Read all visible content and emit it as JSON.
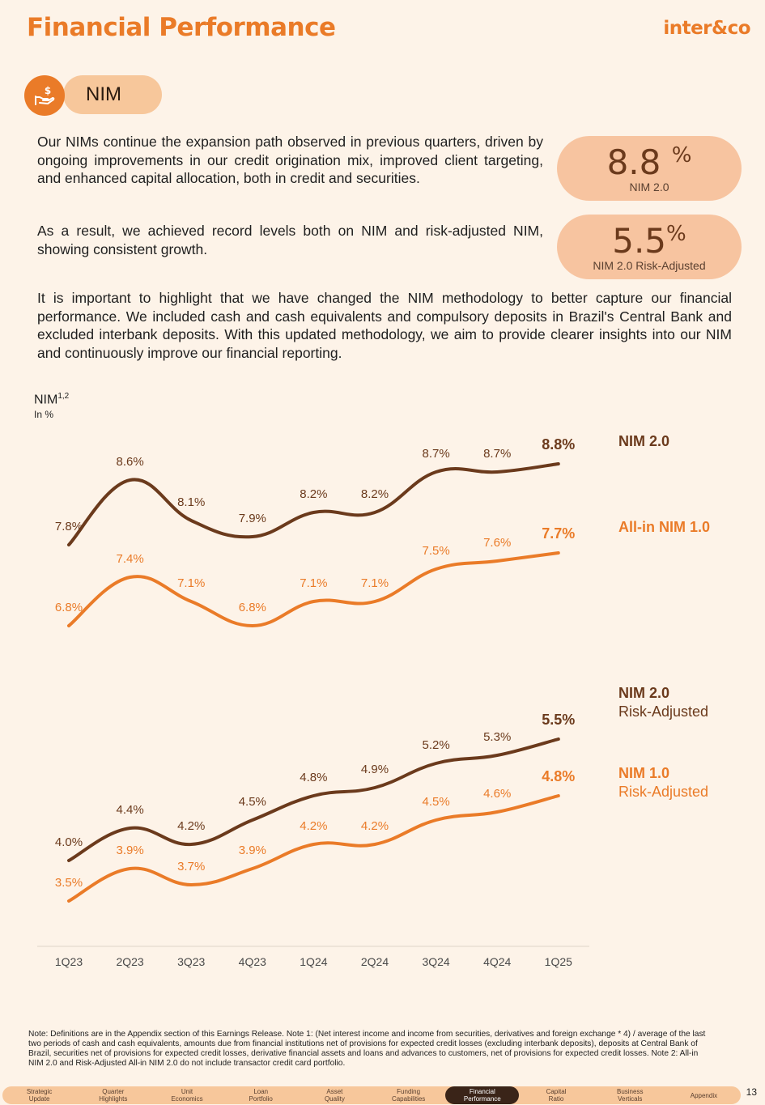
{
  "header": {
    "title": "Financial Performance",
    "logo": "inter&co"
  },
  "section": {
    "icon": "hand-dollar-icon",
    "label": "NIM"
  },
  "paragraphs": [
    "Our NIMs continue the expansion path observed in previous quarters, driven by ongoing improvements in our credit origination mix, improved client targeting, and enhanced capital allocation, both in credit and securities.",
    "As a result, we achieved record levels both on NIM and risk-adjusted NIM, showing consistent growth.",
    "It is important to highlight that we have changed the NIM methodology to better capture our financial performance. We included cash and cash equivalents and compulsory deposits in Brazil's Central Bank and excluded interbank deposits. With this updated methodology, we aim to provide clearer insights into our NIM and continuously improve our financial reporting."
  ],
  "kpis": [
    {
      "value": "8.8",
      "unit": "%",
      "label": "NIM 2.0"
    },
    {
      "value": "5.5",
      "unit": "%",
      "label": "NIM 2.0 Risk-Adjusted"
    }
  ],
  "chart_data": {
    "type": "line",
    "title": "NIM",
    "title_superscript": "1,2",
    "subtitle": "In %",
    "categories": [
      "1Q23",
      "2Q23",
      "3Q23",
      "4Q23",
      "1Q24",
      "2Q24",
      "3Q24",
      "4Q24",
      "1Q25"
    ],
    "series": [
      {
        "name": "NIM 2.0",
        "color": "#6b3a1c",
        "values": [
          7.8,
          8.6,
          8.1,
          7.9,
          8.2,
          8.2,
          8.7,
          8.7,
          8.8
        ],
        "labels": [
          "7.8%",
          "8.6%",
          "8.1%",
          "7.9%",
          "8.2%",
          "8.2%",
          "8.7%",
          "8.7%",
          "8.8%"
        ]
      },
      {
        "name": "All-in NIM 1.0",
        "color": "#ea7b28",
        "values": [
          6.8,
          7.4,
          7.1,
          6.8,
          7.1,
          7.1,
          7.5,
          7.6,
          7.7
        ],
        "labels": [
          "6.8%",
          "7.4%",
          "7.1%",
          "6.8%",
          "7.1%",
          "7.1%",
          "7.5%",
          "7.6%",
          "7.7%"
        ]
      },
      {
        "name": "NIM 2.0 Risk-Adjusted",
        "color": "#6b3a1c",
        "values": [
          4.0,
          4.4,
          4.2,
          4.5,
          4.8,
          4.9,
          5.2,
          5.3,
          5.5
        ],
        "labels": [
          "4.0%",
          "4.4%",
          "4.2%",
          "4.5%",
          "4.8%",
          "4.9%",
          "5.2%",
          "5.3%",
          "5.5%"
        ]
      },
      {
        "name": "NIM 1.0 Risk-Adjusted",
        "color": "#ea7b28",
        "values": [
          3.5,
          3.9,
          3.7,
          3.9,
          4.2,
          4.2,
          4.5,
          4.6,
          4.8
        ],
        "labels": [
          "3.5%",
          "3.9%",
          "3.7%",
          "3.9%",
          "4.2%",
          "4.2%",
          "4.5%",
          "4.6%",
          "4.8%"
        ]
      }
    ],
    "legend": [
      {
        "line1": "NIM 2.0",
        "line2": ""
      },
      {
        "line1": "All-in NIM 1.0",
        "line2": ""
      },
      {
        "line1": "NIM 2.0",
        "line2": "Risk-Adjusted"
      },
      {
        "line1": "NIM 1.0",
        "line2": "Risk-Adjusted"
      }
    ],
    "legend_position": "right",
    "grid": false
  },
  "footnote": "Note: Definitions are in the Appendix section of this Earnings Release. Note 1: (Net interest income and income from securities, derivatives and foreign exchange * 4) / average of the last two periods of cash and cash equivalents, amounts due from financial institutions net of provisions for expected credit losses (excluding interbank deposits), deposits at Central Bank of Brazil, securities net of provisions for expected credit losses, derivative financial assets and loans and advances to customers, net of provisions for expected credit losses. Note 2: All-in NIM 2.0 and Risk-Adjusted All-in NIM 2.0 do not include transactor credit card portfolio.",
  "nav": [
    {
      "line1": "Strategic",
      "line2": "Update",
      "active": false
    },
    {
      "line1": "Quarter",
      "line2": "Highlights",
      "active": false
    },
    {
      "line1": "Unit",
      "line2": "Economics",
      "active": false
    },
    {
      "line1": "Loan",
      "line2": "Portfolio",
      "active": false
    },
    {
      "line1": "Asset",
      "line2": "Quality",
      "active": false
    },
    {
      "line1": "Funding",
      "line2": "Capabilities",
      "active": false
    },
    {
      "line1": "Financial",
      "line2": "Performance",
      "active": true
    },
    {
      "line1": "Capital",
      "line2": "Ratio",
      "active": false
    },
    {
      "line1": "Business",
      "line2": "Verticals",
      "active": false
    },
    {
      "line1": "Appendix",
      "line2": "",
      "active": false
    }
  ],
  "page_number": "13"
}
